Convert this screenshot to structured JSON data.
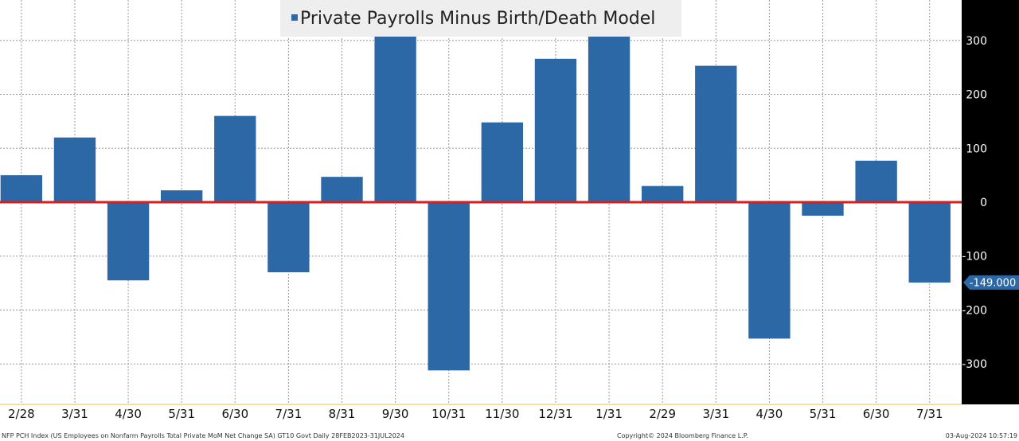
{
  "chart_data": {
    "type": "bar",
    "title": "",
    "xlabel": "",
    "ylabel": "",
    "legend": {
      "label": "Private Payrolls Minus Birth/Death Model",
      "placement": "top-center"
    },
    "categories": [
      "2/28",
      "3/31",
      "4/30",
      "5/31",
      "6/30",
      "7/31",
      "8/31",
      "9/30",
      "10/31",
      "11/30",
      "12/31",
      "1/31",
      "2/29",
      "3/31",
      "4/30",
      "5/31",
      "6/30",
      "7/31"
    ],
    "series": [
      {
        "name": "Private Payrolls Minus Birth/Death Model",
        "color": "#2c67a6",
        "values": [
          50,
          120,
          -145,
          22,
          160,
          -130,
          47,
          315,
          -312,
          148,
          266,
          317,
          30,
          253,
          -253,
          -25,
          77,
          -149
        ]
      }
    ],
    "ylim": [
      -375,
      375
    ],
    "yticks": [
      {
        "value": 300,
        "label": "300"
      },
      {
        "value": 200,
        "label": "200"
      },
      {
        "value": 100,
        "label": "100"
      },
      {
        "value": 0,
        "label": "0"
      },
      {
        "value": -100,
        "label": "-100"
      },
      {
        "value": -200,
        "label": "-200"
      },
      {
        "value": -300,
        "label": "-300"
      }
    ],
    "last_value": {
      "value": -149,
      "label": "-149.000"
    },
    "grid": true,
    "zero_line_color": "#d42020",
    "axis_background": "#000000"
  },
  "footer": {
    "source": "NFP PCH Index (US Employees on Nonfarm Payrolls Total Private MoM Net Change SA) GT10  Govt  Daily 28FEB2023-31JUL2024",
    "copyright": "Copyright© 2024 Bloomberg Finance L.P.",
    "timestamp": "03-Aug-2024 10:57:19"
  }
}
